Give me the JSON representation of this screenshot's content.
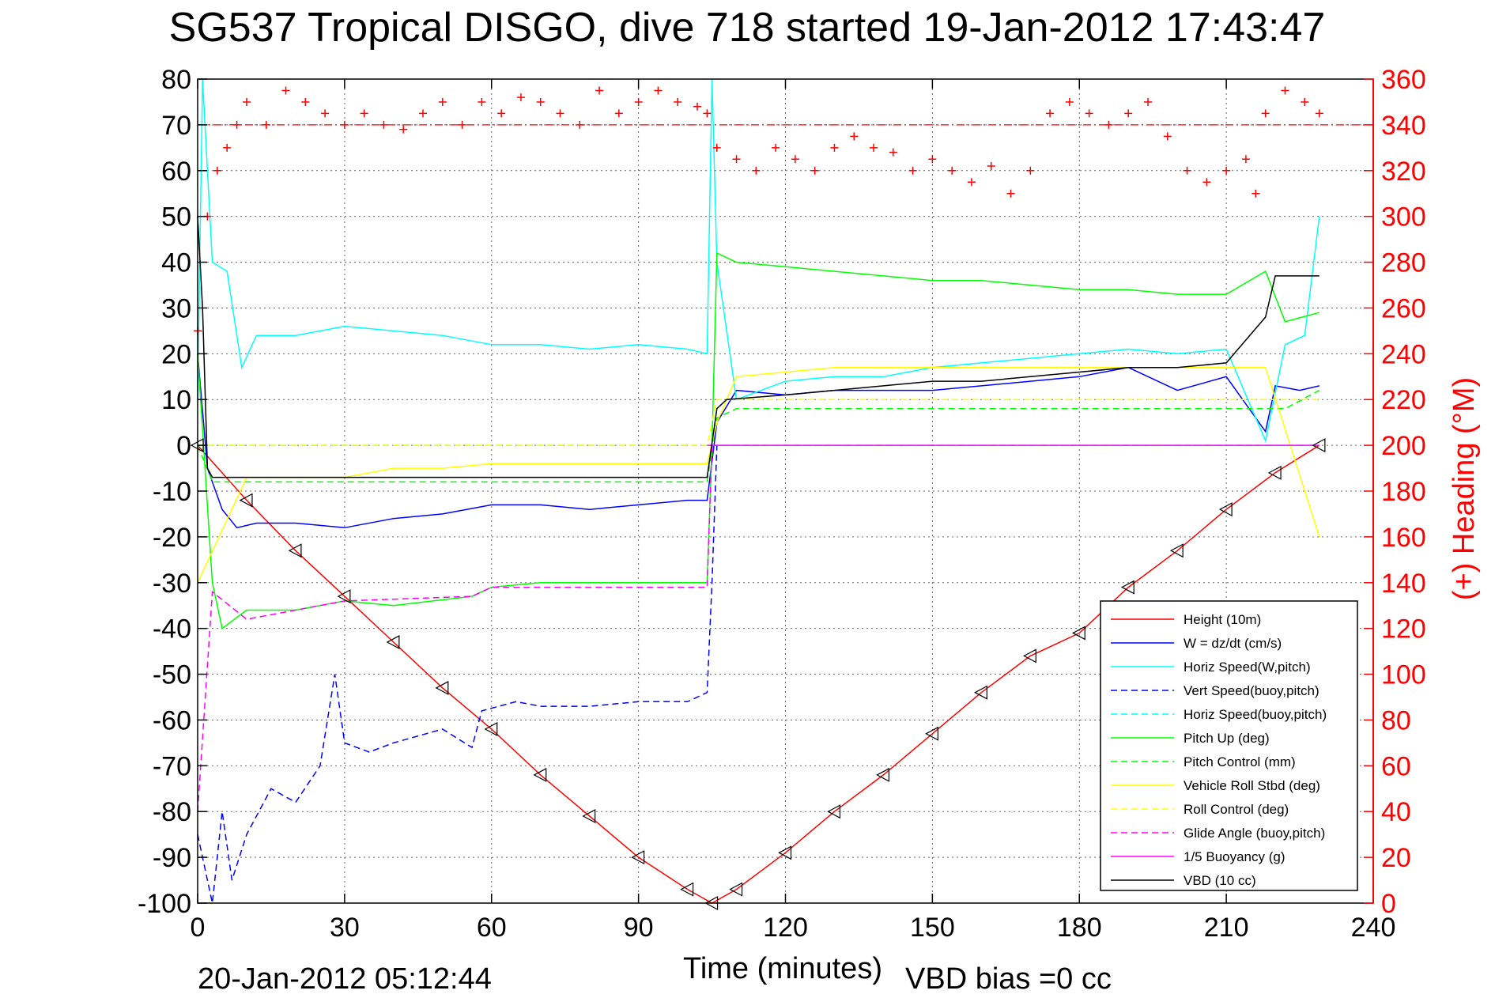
{
  "chart_data": {
    "type": "line",
    "title": "SG537 Tropical DISGO, dive 718 started 19-Jan-2012 17:43:47",
    "xlabel": "Time (minutes)",
    "ylabel_right": "(+) Heading (°M)",
    "footer_left": "20-Jan-2012 05:12:44",
    "footer_right": "VBD bias =0 cc",
    "xlim": [
      0,
      240
    ],
    "ylim": [
      -100,
      80
    ],
    "y2lim": [
      0,
      360
    ],
    "x_ticks": [
      0,
      30,
      60,
      90,
      120,
      150,
      180,
      210,
      240
    ],
    "y_ticks": [
      80,
      70,
      60,
      50,
      40,
      30,
      20,
      10,
      0,
      -10,
      -20,
      -30,
      -40,
      -50,
      -60,
      -70,
      -80,
      -90,
      -100
    ],
    "y2_ticks": [
      360,
      340,
      320,
      300,
      280,
      260,
      240,
      220,
      200,
      180,
      160,
      140,
      120,
      100,
      80,
      60,
      40,
      20,
      0
    ],
    "grid": true,
    "legend_position": "lower-right",
    "reference_lines": [
      {
        "axis": "y2",
        "value": 340,
        "color": "#ff0000",
        "style": "dashdot"
      }
    ],
    "series": [
      {
        "name": "Height (10m)",
        "color": "#ff0000",
        "style": "solid",
        "axis": "y",
        "x": [
          0,
          10,
          20,
          30,
          40,
          50,
          60,
          70,
          80,
          90,
          100,
          105,
          110,
          120,
          130,
          140,
          150,
          160,
          170,
          180,
          190,
          200,
          210,
          220,
          229
        ],
        "y": [
          0,
          -12,
          -23,
          -33,
          -43,
          -53,
          -62,
          -72,
          -81,
          -90,
          -97,
          -100,
          -97,
          -89,
          -80,
          -72,
          -63,
          -54,
          -46,
          -41,
          -31,
          -23,
          -14,
          -6,
          0
        ]
      },
      {
        "name": "W = dz/dt (cm/s)",
        "color": "#0000ff",
        "style": "solid",
        "axis": "y",
        "x": [
          0,
          2,
          5,
          8,
          12,
          20,
          30,
          40,
          50,
          60,
          70,
          80,
          90,
          100,
          104,
          106,
          110,
          120,
          130,
          140,
          150,
          160,
          170,
          180,
          190,
          200,
          210,
          218,
          220,
          225,
          229
        ],
        "y": [
          20,
          -5,
          -14,
          -18,
          -17,
          -17,
          -18,
          -16,
          -15,
          -13,
          -13,
          -14,
          -13,
          -12,
          -12,
          5,
          12,
          11,
          12,
          12,
          12,
          13,
          14,
          15,
          17,
          12,
          15,
          3,
          13,
          12,
          13
        ]
      },
      {
        "name": "Horiz Speed(W,pitch)",
        "color": "#00ffff",
        "style": "solid",
        "axis": "y",
        "x": [
          0,
          1,
          3,
          6,
          9,
          12,
          20,
          30,
          40,
          50,
          60,
          70,
          80,
          90,
          100,
          104,
          105,
          106,
          110,
          120,
          130,
          140,
          150,
          160,
          170,
          180,
          190,
          200,
          210,
          218,
          222,
          226,
          229
        ],
        "y": [
          10,
          80,
          40,
          38,
          17,
          24,
          24,
          26,
          25,
          24,
          22,
          22,
          21,
          22,
          21,
          20,
          80,
          40,
          10,
          14,
          15,
          15,
          17,
          18,
          19,
          20,
          21,
          20,
          21,
          1,
          22,
          24,
          50
        ]
      },
      {
        "name": "Vert Speed(buoy,pitch)",
        "color": "#0000ff",
        "style": "dashed",
        "axis": "y",
        "x": [
          0,
          3,
          5,
          7,
          10,
          15,
          20,
          25,
          28,
          30,
          35,
          40,
          50,
          56,
          58,
          65,
          70,
          80,
          90,
          100,
          104,
          105,
          106
        ],
        "y": [
          -85,
          -100,
          -80,
          -95,
          -85,
          -75,
          -78,
          -70,
          -50,
          -65,
          -67,
          -65,
          -62,
          -66,
          -58,
          -56,
          -57,
          -57,
          -56,
          -56,
          -54,
          -30,
          0
        ]
      },
      {
        "name": "Horiz Speed(buoy,pitch)",
        "color": "#00ffff",
        "style": "dashed",
        "axis": "y",
        "x": [
          0,
          104,
          106,
          229
        ],
        "y": [
          0,
          0,
          0,
          0
        ]
      },
      {
        "name": "Pitch Up (deg)",
        "color": "#00ff00",
        "style": "solid",
        "axis": "y",
        "x": [
          0,
          3,
          5,
          10,
          20,
          30,
          40,
          56,
          60,
          70,
          80,
          90,
          100,
          104,
          105,
          106,
          110,
          120,
          130,
          140,
          150,
          160,
          170,
          180,
          190,
          200,
          210,
          218,
          222,
          229
        ],
        "y": [
          20,
          -30,
          -40,
          -36,
          -36,
          -34,
          -35,
          -33,
          -31,
          -30,
          -30,
          -30,
          -30,
          -30,
          0,
          42,
          40,
          39,
          38,
          37,
          36,
          36,
          35,
          34,
          34,
          33,
          33,
          38,
          27,
          29
        ]
      },
      {
        "name": "Pitch Control (mm)",
        "color": "#00ff00",
        "style": "dashed",
        "axis": "y",
        "x": [
          0,
          3,
          10,
          30,
          60,
          90,
          104,
          106,
          110,
          150,
          200,
          222,
          229
        ],
        "y": [
          0,
          -8,
          -8,
          -8,
          -8,
          -8,
          -8,
          6,
          8,
          8,
          8,
          8,
          12
        ]
      },
      {
        "name": "Vehicle Roll Stbd (deg)",
        "color": "#ffff00",
        "style": "solid",
        "axis": "y",
        "x": [
          0,
          10,
          20,
          30,
          40,
          50,
          60,
          70,
          80,
          90,
          100,
          104,
          106,
          110,
          120,
          130,
          140,
          150,
          160,
          170,
          180,
          190,
          200,
          210,
          218,
          229
        ],
        "y": [
          -30,
          -7,
          -7,
          -7,
          -5,
          -5,
          -4,
          -4,
          -4,
          -4,
          -4,
          -4,
          5,
          15,
          16,
          17,
          17,
          17,
          17,
          17,
          17,
          17,
          17,
          17,
          17,
          -20
        ]
      },
      {
        "name": "Roll Control (deg)",
        "color": "#ffff00",
        "style": "dashed",
        "axis": "y",
        "x": [
          0,
          104,
          106,
          229
        ],
        "y": [
          0,
          0,
          10,
          10
        ]
      },
      {
        "name": "Glide Angle (buoy,pitch)",
        "color": "#ff00ff",
        "style": "dashed",
        "axis": "y",
        "x": [
          0,
          3,
          10,
          30,
          56,
          60,
          90,
          104,
          105
        ],
        "y": [
          -80,
          -32,
          -38,
          -34,
          -33,
          -31,
          -31,
          -31,
          0
        ]
      },
      {
        "name": "1/5 Buoyancy (g)",
        "color": "#ff00ff",
        "style": "solid",
        "axis": "y",
        "x": [
          104,
          229
        ],
        "y": [
          0,
          0
        ]
      },
      {
        "name": "VBD (10 cc)",
        "color": "#000000",
        "style": "solid",
        "axis": "y",
        "x": [
          0,
          1,
          2,
          3,
          10,
          30,
          60,
          90,
          104,
          106,
          108,
          120,
          130,
          140,
          150,
          160,
          170,
          180,
          190,
          200,
          210,
          218,
          220,
          229
        ],
        "y": [
          50,
          30,
          -5,
          -7,
          -7,
          -7,
          -7,
          -7,
          -7,
          8,
          10,
          11,
          12,
          13,
          14,
          14,
          15,
          16,
          17,
          17,
          18,
          28,
          37,
          37
        ]
      },
      {
        "name": "Heading",
        "color": "#ff0000",
        "style": "plus-markers",
        "axis": "y2",
        "x": [
          0,
          2,
          4,
          6,
          8,
          10,
          14,
          18,
          22,
          26,
          30,
          34,
          38,
          42,
          46,
          50,
          54,
          58,
          62,
          66,
          70,
          74,
          78,
          82,
          86,
          90,
          94,
          98,
          102,
          104,
          106,
          110,
          114,
          118,
          122,
          126,
          130,
          134,
          138,
          142,
          146,
          150,
          154,
          158,
          162,
          166,
          170,
          174,
          178,
          182,
          186,
          190,
          194,
          198,
          202,
          206,
          210,
          214,
          216,
          218,
          222,
          226,
          229
        ],
        "y": [
          250,
          300,
          320,
          330,
          340,
          350,
          340,
          355,
          350,
          345,
          340,
          345,
          340,
          338,
          345,
          350,
          340,
          350,
          345,
          352,
          350,
          345,
          340,
          355,
          345,
          350,
          355,
          350,
          348,
          345,
          330,
          325,
          320,
          330,
          325,
          320,
          330,
          335,
          330,
          328,
          320,
          325,
          320,
          315,
          322,
          310,
          320,
          345,
          350,
          345,
          340,
          345,
          350,
          335,
          320,
          315,
          320,
          325,
          310,
          345,
          355,
          350,
          345
        ]
      }
    ]
  }
}
